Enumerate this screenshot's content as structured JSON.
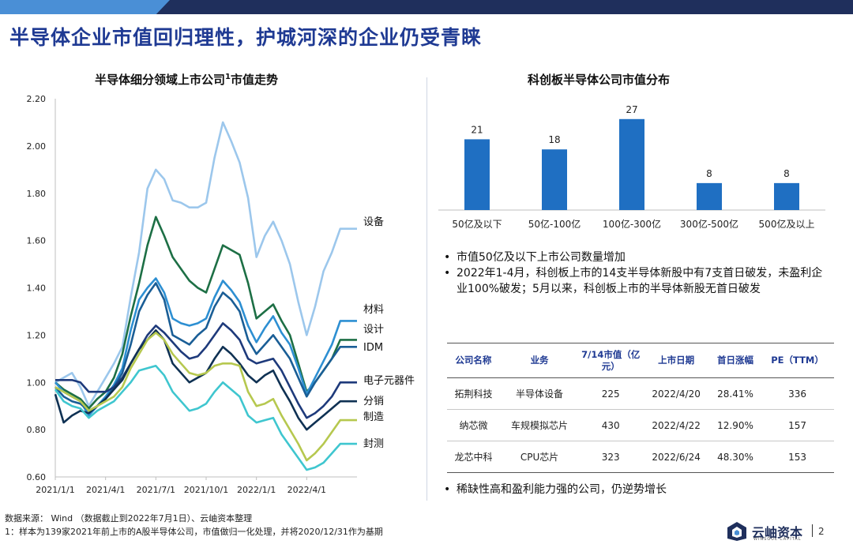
{
  "page": {
    "title": "半导体企业市值回归理性，护城河深的企业仍受青睐",
    "page_number": "2"
  },
  "left_chart": {
    "title_main": "半导体细分领域上市公司",
    "title_sup": "1",
    "title_tail": "市值走势"
  },
  "right_chart": {
    "title": "科创板半导体公司市值分布"
  },
  "chart_data": [
    {
      "type": "line",
      "title": "半导体细分领域上市公司1市值走势",
      "x": [
        "2021/1/1",
        "2021/1/15",
        "2021/2/1",
        "2021/2/15",
        "2021/3/1",
        "2021/3/15",
        "2021/4/1",
        "2021/4/15",
        "2021/5/1",
        "2021/5/15",
        "2021/6/1",
        "2021/6/15",
        "2021/7/1",
        "2021/7/15",
        "2021/8/1",
        "2021/8/15",
        "2021/9/1",
        "2021/9/15",
        "2021/10/1",
        "2021/10/15",
        "2021/11/1",
        "2021/11/15",
        "2021/12/1",
        "2021/12/15",
        "2022/1/1",
        "2022/1/15",
        "2022/2/1",
        "2022/2/15",
        "2022/3/1",
        "2022/3/15",
        "2022/4/1",
        "2022/4/15",
        "2022/5/1",
        "2022/5/15",
        "2022/6/1",
        "2022/6/15",
        "2022/7/1"
      ],
      "x_ticks": [
        "2021/1/1",
        "2021/4/1",
        "2021/7/1",
        "2021/10/1",
        "2022/1/1",
        "2022/4/1"
      ],
      "ylim": [
        0.6,
        2.2
      ],
      "y_ticks": [
        "0.60",
        "0.80",
        "1.00",
        "1.20",
        "1.40",
        "1.60",
        "1.80",
        "2.00",
        "2.20"
      ],
      "grid": false,
      "series": [
        {
          "name": "设备",
          "color": "#9cc7ec",
          "values": [
            1.0,
            1.02,
            1.04,
            0.98,
            0.9,
            0.96,
            1.02,
            1.08,
            1.15,
            1.36,
            1.55,
            1.82,
            1.9,
            1.86,
            1.77,
            1.76,
            1.74,
            1.74,
            1.76,
            1.95,
            2.1,
            2.02,
            1.93,
            1.78,
            1.53,
            1.62,
            1.68,
            1.6,
            1.5,
            1.34,
            1.2,
            1.32,
            1.47,
            1.55,
            1.65,
            1.65,
            1.65
          ]
        },
        {
          "name": "材料",
          "color": "#1d6f45",
          "values": [
            1.0,
            0.97,
            0.95,
            0.93,
            0.89,
            0.93,
            0.96,
            1.02,
            1.12,
            1.28,
            1.42,
            1.58,
            1.7,
            1.62,
            1.53,
            1.48,
            1.43,
            1.4,
            1.38,
            1.48,
            1.58,
            1.56,
            1.54,
            1.42,
            1.27,
            1.3,
            1.33,
            1.26,
            1.2,
            1.08,
            0.96,
            1.0,
            1.05,
            1.1,
            1.18,
            1.18,
            1.18
          ]
        },
        {
          "name": "设计",
          "color": "#2d8fd2",
          "values": [
            1.0,
            0.96,
            0.94,
            0.92,
            0.86,
            0.9,
            0.94,
            0.99,
            1.06,
            1.22,
            1.35,
            1.4,
            1.44,
            1.38,
            1.27,
            1.25,
            1.24,
            1.25,
            1.27,
            1.36,
            1.43,
            1.39,
            1.34,
            1.24,
            1.17,
            1.23,
            1.28,
            1.21,
            1.16,
            1.06,
            0.95,
            1.02,
            1.09,
            1.16,
            1.26,
            1.26,
            1.26
          ]
        },
        {
          "name": "IDM",
          "color": "#1a5e96",
          "values": [
            0.98,
            0.94,
            0.92,
            0.91,
            0.88,
            0.9,
            0.93,
            0.98,
            1.04,
            1.16,
            1.3,
            1.37,
            1.42,
            1.35,
            1.2,
            1.18,
            1.16,
            1.2,
            1.23,
            1.32,
            1.38,
            1.35,
            1.3,
            1.18,
            1.12,
            1.16,
            1.2,
            1.15,
            1.1,
            1.02,
            0.94,
            1.0,
            1.05,
            1.1,
            1.15,
            1.15,
            1.15
          ]
        },
        {
          "name": "电子元器件",
          "color": "#1e3a7b",
          "values": [
            1.01,
            1.01,
            1.01,
            1.0,
            0.96,
            0.96,
            0.96,
            0.98,
            1.02,
            1.08,
            1.14,
            1.2,
            1.24,
            1.21,
            1.17,
            1.13,
            1.1,
            1.11,
            1.15,
            1.2,
            1.25,
            1.22,
            1.18,
            1.1,
            1.08,
            1.09,
            1.1,
            1.05,
            0.98,
            0.91,
            0.85,
            0.87,
            0.9,
            0.94,
            1.0,
            1.0,
            1.0
          ]
        },
        {
          "name": "分销",
          "color": "#0f3153",
          "values": [
            0.95,
            0.83,
            0.86,
            0.88,
            0.87,
            0.9,
            0.93,
            0.97,
            1.01,
            1.08,
            1.14,
            1.18,
            1.22,
            1.18,
            1.08,
            1.04,
            1.0,
            1.02,
            1.04,
            1.1,
            1.15,
            1.12,
            1.08,
            1.03,
            1.0,
            1.03,
            1.05,
            0.98,
            0.92,
            0.85,
            0.8,
            0.83,
            0.86,
            0.89,
            0.92,
            0.92,
            0.92
          ]
        },
        {
          "name": "制造",
          "color": "#b6c84f",
          "values": [
            0.98,
            0.96,
            0.94,
            0.92,
            0.88,
            0.9,
            0.92,
            0.94,
            0.98,
            1.06,
            1.12,
            1.18,
            1.21,
            1.18,
            1.12,
            1.08,
            1.04,
            1.03,
            1.04,
            1.07,
            1.08,
            1.08,
            1.07,
            0.96,
            0.9,
            0.91,
            0.93,
            0.86,
            0.8,
            0.74,
            0.67,
            0.7,
            0.74,
            0.79,
            0.84,
            0.84,
            0.84
          ]
        },
        {
          "name": "封测",
          "color": "#3fc6cf",
          "values": [
            0.97,
            0.92,
            0.9,
            0.89,
            0.85,
            0.88,
            0.9,
            0.92,
            0.96,
            1.0,
            1.05,
            1.06,
            1.07,
            1.03,
            0.96,
            0.92,
            0.88,
            0.89,
            0.91,
            0.96,
            1.0,
            0.97,
            0.94,
            0.86,
            0.83,
            0.84,
            0.85,
            0.78,
            0.73,
            0.68,
            0.63,
            0.64,
            0.66,
            0.7,
            0.74,
            0.74,
            0.74
          ]
        }
      ]
    },
    {
      "type": "bar",
      "title": "科创板半导体公司市值分布",
      "categories": [
        "50亿及以下",
        "50亿-100亿",
        "100亿-300亿",
        "300亿-500亿",
        "500亿及以上"
      ],
      "values": [
        21,
        18,
        27,
        8,
        8
      ],
      "ylim": [
        0,
        30
      ],
      "color": "#1f6fc2",
      "data_labels": true,
      "grid": false
    }
  ],
  "bullets_top": [
    "市值50亿及以下上市公司数量增加",
    "2022年1-4月，科创板上市的14支半导体新股中有7支首日破发，未盈利企业100%破发；5月以来，科创板上市的半导体新股无首日破发"
  ],
  "table": {
    "headers": [
      "公司名称",
      "业务",
      "7/14市值（亿元）",
      "上市日期",
      "首日涨幅",
      "PE（TTM）"
    ],
    "rows": [
      [
        "拓荆科技",
        "半导体设备",
        "225",
        "2022/4/20",
        "28.41%",
        "336"
      ],
      [
        "纳芯微",
        "车规模拟芯片",
        "430",
        "2022/4/22",
        "12.90%",
        "157"
      ],
      [
        "龙芯中科",
        "CPU芯片",
        "323",
        "2022/6/24",
        "48.30%",
        "153"
      ]
    ]
  },
  "bullets_bottom": [
    "稀缺性高和盈利能力强的公司，仍逆势增长"
  ],
  "footnotes": {
    "source": "数据来源： Wind （数据截止到2022年7月1日）、云岫资本整理",
    "note": "1：样本为139家2021年前上市的A股半导体公司，市值做归一化处理，并将2020/12/31作为基期"
  },
  "logo": {
    "name": "云岫资本",
    "sub": "WINSOUL CAPITAL",
    "icon": "winsoul-logo-icon",
    "color": "#1f2f5c"
  }
}
